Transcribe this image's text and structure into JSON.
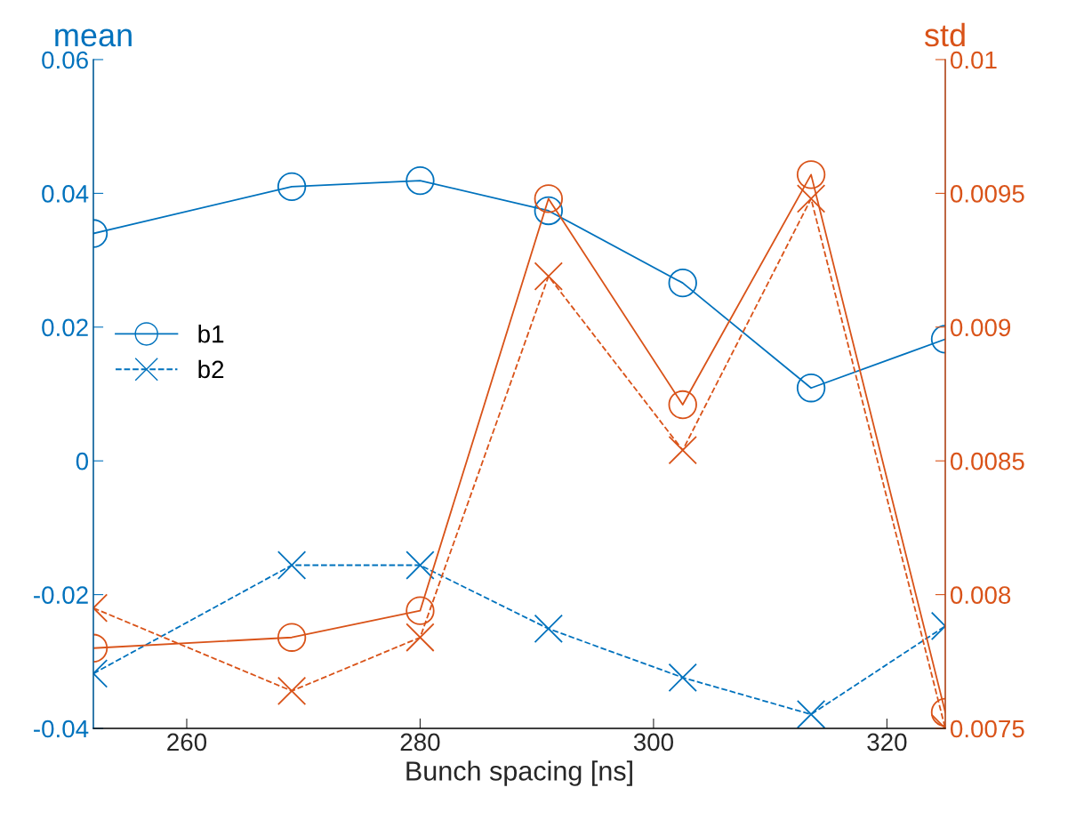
{
  "chart_data": {
    "type": "line",
    "xlabel": "Bunch spacing [ns]",
    "ylabel": "mean",
    "y2label": "std",
    "x": [
      252,
      269,
      280,
      291,
      302.5,
      313.5,
      325
    ],
    "series": [
      {
        "name": "b1",
        "color": "#0072bd",
        "marker": "circle",
        "line_style": "solid",
        "values": [
          0.034,
          0.041,
          0.0419,
          0.0374,
          0.0266,
          0.0109,
          0.0182
        ]
      },
      {
        "name": "b2",
        "color": "#0072bd",
        "marker": "cross",
        "line_style": "dashed",
        "values": [
          -0.0318,
          -0.0156,
          -0.0156,
          -0.0251,
          -0.0324,
          -0.0379,
          -0.0247
        ]
      },
      {
        "color": "#d95319",
        "marker": "circle",
        "line_style": "solid",
        "axis": "y2",
        "values": [
          0.0078,
          0.00784,
          0.00794,
          0.00948,
          0.00871,
          0.00957,
          0.00756
        ]
      },
      {
        "color": "#d95319",
        "marker": "cross",
        "line_style": "dashed",
        "axis": "y2",
        "values": [
          0.00795,
          0.00764,
          0.00784,
          0.00919,
          0.00854,
          0.00948,
          0.0075
        ]
      }
    ],
    "xlim": [
      252,
      325
    ],
    "xticks": [
      260,
      280,
      300,
      320
    ],
    "ylim": [
      -0.04,
      0.06
    ],
    "yticks": [
      -0.04,
      -0.02,
      0,
      0.02,
      0.04,
      0.06
    ],
    "y2lim": [
      0.0075,
      0.01
    ],
    "y2ticks": [
      0.0075,
      0.008,
      0.0085,
      0.009,
      0.0095,
      0.01
    ],
    "grid": false,
    "legend": "center left"
  }
}
